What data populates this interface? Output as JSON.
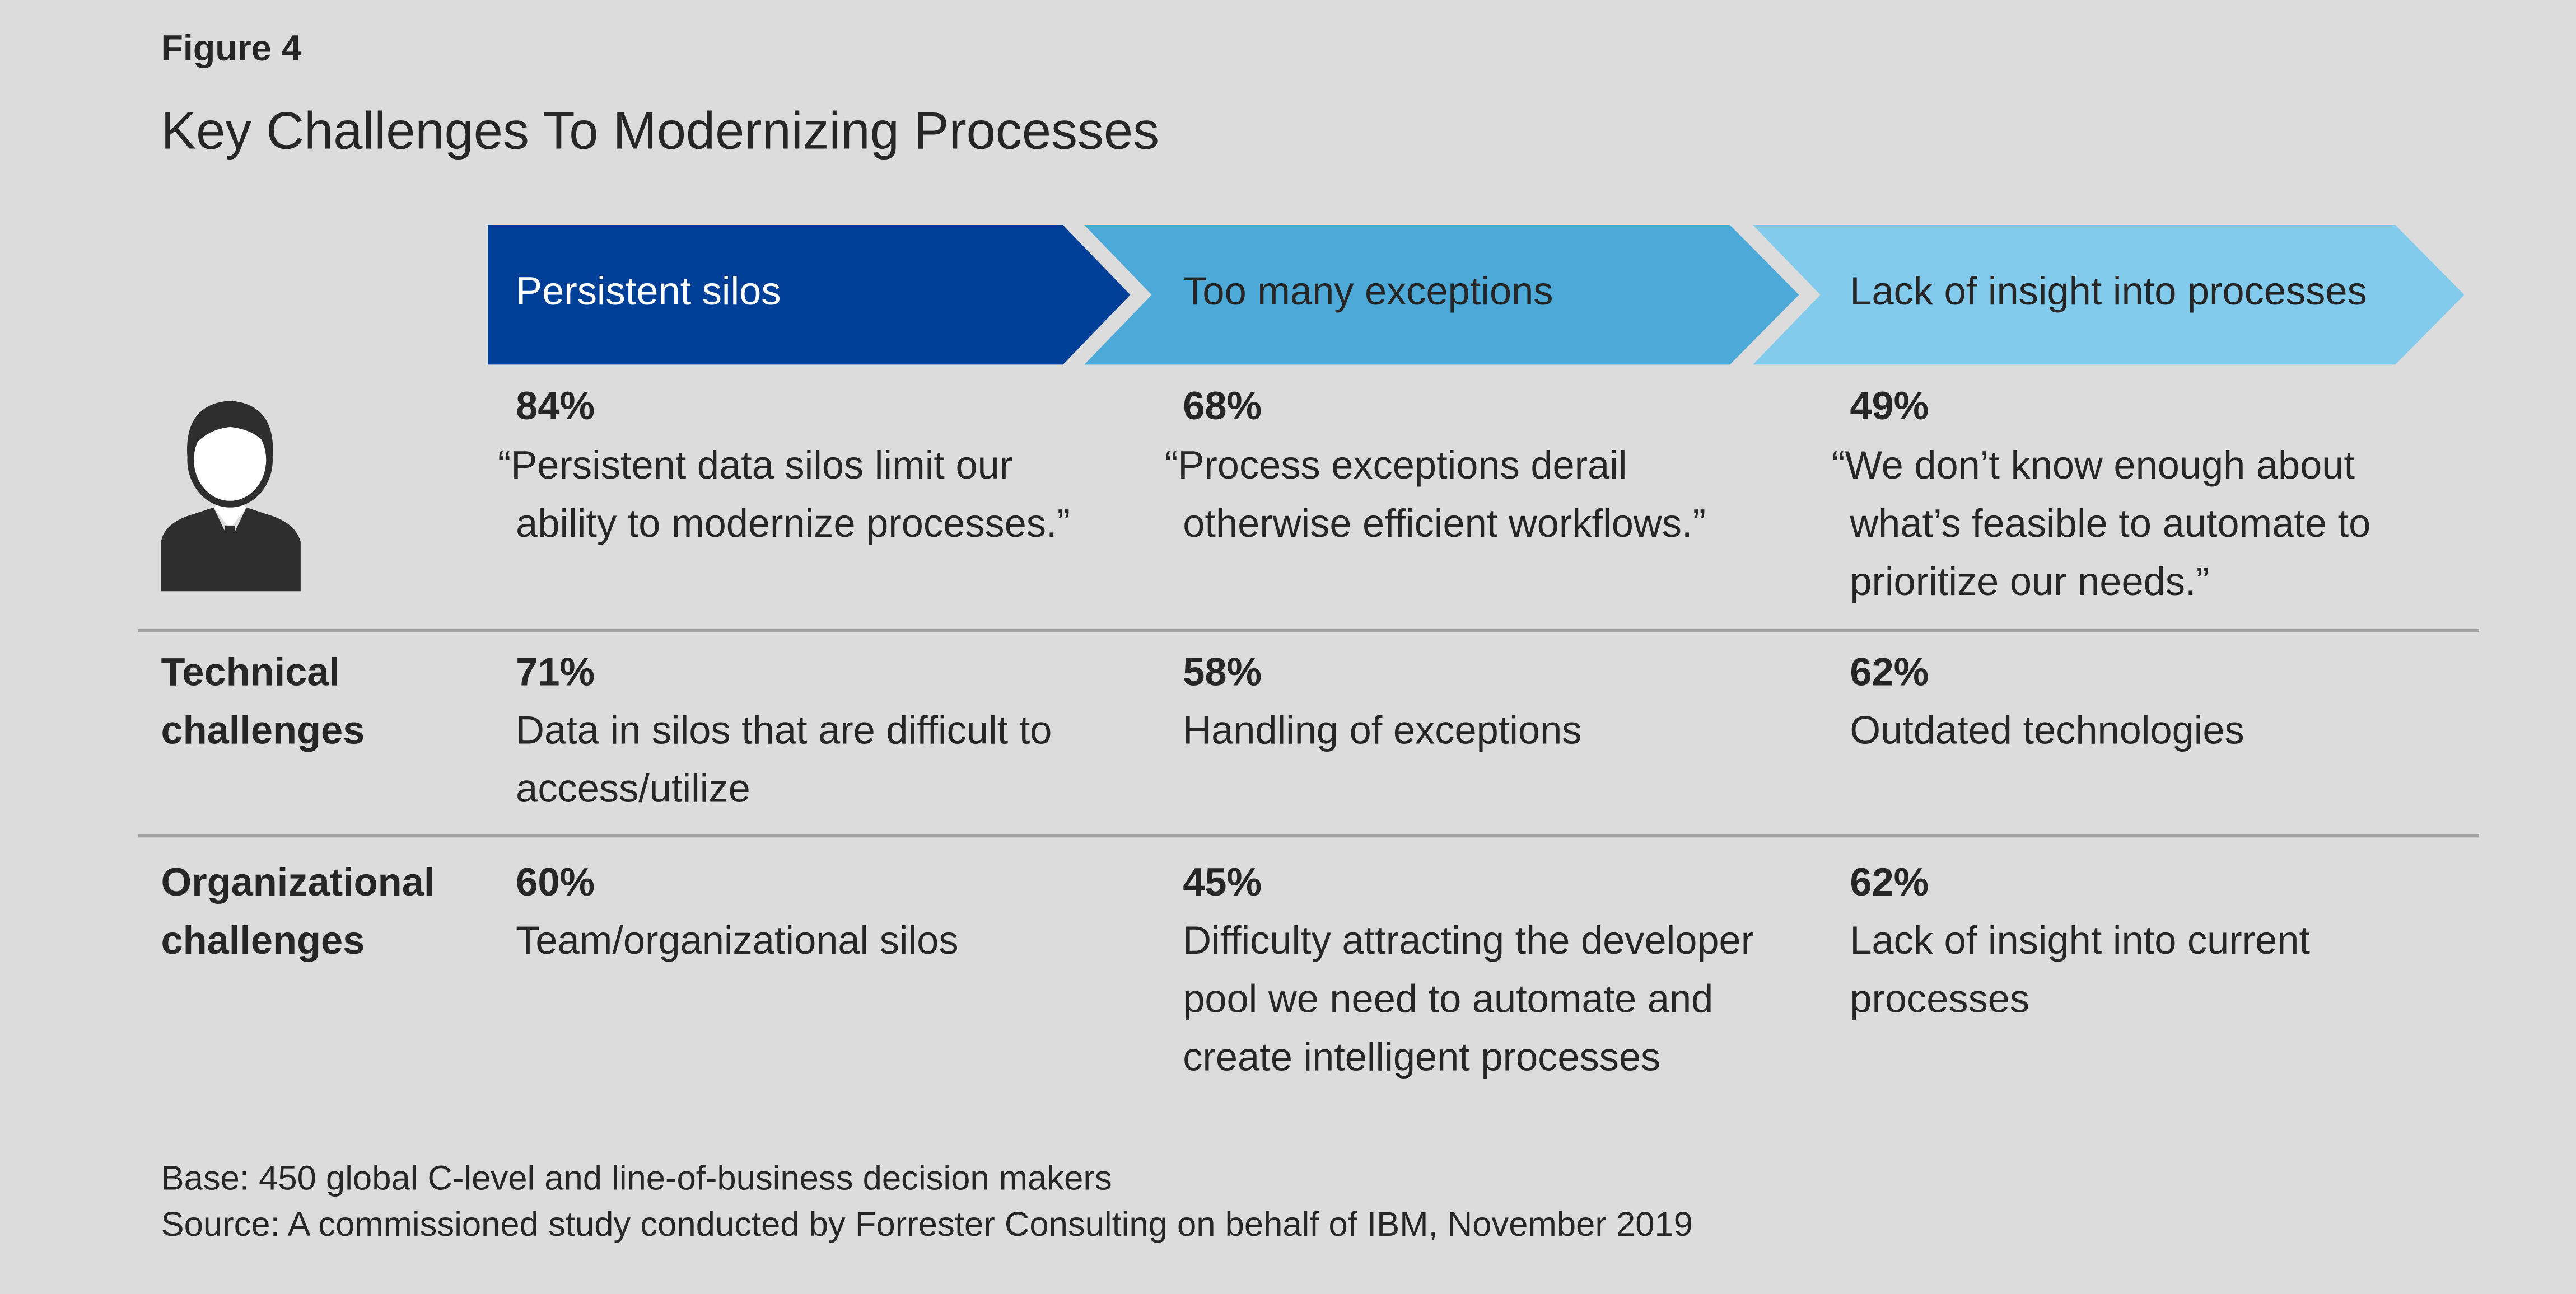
{
  "figure_label": "Figure 4",
  "title": "Key Challenges To Modernizing Processes",
  "columns": [
    {
      "header": "Persistent silos",
      "pct": "84%",
      "quote": [
        "“Persistent data silos limit our",
        "ability to modernize processes.”"
      ]
    },
    {
      "header": "Too many exceptions",
      "pct": "68%",
      "quote": [
        "“Process exceptions derail",
        "otherwise efficient workflows.”"
      ]
    },
    {
      "header": "Lack of insight into processes",
      "pct": "49%",
      "quote": [
        "“We don’t know enough about",
        "what’s feasible to automate to",
        "prioritize our needs.”"
      ]
    }
  ],
  "rows": [
    {
      "label": [
        "Technical",
        "challenges"
      ],
      "cells": [
        {
          "pct": "71%",
          "text": [
            "Data in silos that are difficult to",
            "access/utilize"
          ]
        },
        {
          "pct": "58%",
          "text": [
            "Handling of exceptions"
          ]
        },
        {
          "pct": "62%",
          "text": [
            "Outdated technologies"
          ]
        }
      ]
    },
    {
      "label": [
        "Organizational",
        "challenges"
      ],
      "cells": [
        {
          "pct": "60%",
          "text": [
            "Team/organizational silos"
          ]
        },
        {
          "pct": "45%",
          "text": [
            "Difficulty attracting the developer",
            "pool we need to automate and",
            "create intelligent processes"
          ]
        },
        {
          "pct": "62%",
          "text": [
            "Lack of insight into current",
            "processes"
          ]
        }
      ]
    }
  ],
  "footnotes": [
    "Base: 450 global C-level and line-of-business decision makers",
    "Source: A commissioned study conducted by Forrester Consulting on behalf of  IBM, November 2019"
  ]
}
